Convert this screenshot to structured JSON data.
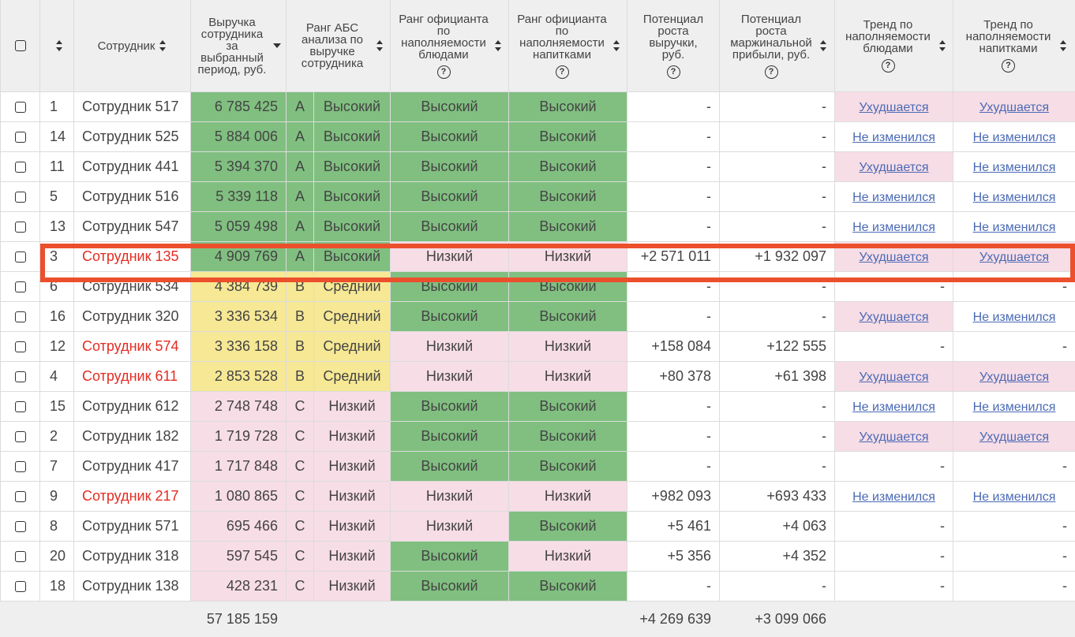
{
  "header": {
    "index": "",
    "employee": "Сотрудник",
    "revenue": "Выручка сотрудника за выбранный период, руб.",
    "abc_rank": "Ранг АБС анализа по выручке сотрудника",
    "dishes_rank": "Ранг официанта по наполняемости блюдами",
    "drinks_rank": "Ранг официанта по наполняемости напитками",
    "revenue_growth": "Потенциал роста выручки, руб.",
    "margin_growth": "Потенциал роста маржинальной прибыли, руб.",
    "trend_dishes": "Тренд по наполняемости блюдами",
    "trend_drinks": "Тренд по наполняемости напитками",
    "help_glyph": "?"
  },
  "colors": {
    "green": "#80bf80",
    "yellow": "#f6e894",
    "pink": "#f7dde6",
    "red_text": "#e32c22",
    "link": "#4a69b5",
    "highlight": "#ec4f2c"
  },
  "rows": [
    {
      "id": "1",
      "name": "Сотрудник 517",
      "revenue": "6 785 425",
      "abc": "A",
      "abc_rank": "Высокий",
      "dishes": "Высокий",
      "drinks": "Высокий",
      "rev_growth": "-",
      "margin_growth": "-",
      "trend_dishes": "Ухудшается",
      "trend_drinks": "Ухудшается"
    },
    {
      "id": "14",
      "name": "Сотрудник 525",
      "revenue": "5 884 006",
      "abc": "A",
      "abc_rank": "Высокий",
      "dishes": "Высокий",
      "drinks": "Высокий",
      "rev_growth": "-",
      "margin_growth": "-",
      "trend_dishes": "Не изменился",
      "trend_drinks": "Не изменился"
    },
    {
      "id": "11",
      "name": "Сотрудник 441",
      "revenue": "5 394 370",
      "abc": "A",
      "abc_rank": "Высокий",
      "dishes": "Высокий",
      "drinks": "Высокий",
      "rev_growth": "-",
      "margin_growth": "-",
      "trend_dishes": "Ухудшается",
      "trend_drinks": "Не изменился"
    },
    {
      "id": "5",
      "name": "Сотрудник 516",
      "revenue": "5 339 118",
      "abc": "A",
      "abc_rank": "Высокий",
      "dishes": "Высокий",
      "drinks": "Высокий",
      "rev_growth": "-",
      "margin_growth": "-",
      "trend_dishes": "Не изменился",
      "trend_drinks": "Не изменился"
    },
    {
      "id": "13",
      "name": "Сотрудник 547",
      "revenue": "5 059 498",
      "abc": "A",
      "abc_rank": "Высокий",
      "dishes": "Высокий",
      "drinks": "Высокий",
      "rev_growth": "-",
      "margin_growth": "-",
      "trend_dishes": "Не изменился",
      "trend_drinks": "Не изменился"
    },
    {
      "id": "3",
      "name": "Сотрудник 135",
      "revenue": "4 909 769",
      "abc": "A",
      "abc_rank": "Высокий",
      "dishes": "Низкий",
      "drinks": "Низкий",
      "rev_growth": "+2 571 011",
      "margin_growth": "+1 932 097",
      "trend_dishes": "Ухудшается",
      "trend_drinks": "Ухудшается"
    },
    {
      "id": "6",
      "name": "Сотрудник 534",
      "revenue": "4 384 739",
      "abc": "B",
      "abc_rank": "Средний",
      "dishes": "Высокий",
      "drinks": "Высокий",
      "rev_growth": "-",
      "margin_growth": "-",
      "trend_dishes": "-",
      "trend_drinks": "-"
    },
    {
      "id": "16",
      "name": "Сотрудник 320",
      "revenue": "3 336 534",
      "abc": "B",
      "abc_rank": "Средний",
      "dishes": "Высокий",
      "drinks": "Высокий",
      "rev_growth": "-",
      "margin_growth": "-",
      "trend_dishes": "Ухудшается",
      "trend_drinks": "Не изменился"
    },
    {
      "id": "12",
      "name": "Сотрудник 574",
      "revenue": "3 336 158",
      "abc": "B",
      "abc_rank": "Средний",
      "dishes": "Низкий",
      "drinks": "Низкий",
      "rev_growth": "+158 084",
      "margin_growth": "+122 555",
      "trend_dishes": "-",
      "trend_drinks": "-"
    },
    {
      "id": "4",
      "name": "Сотрудник 611",
      "revenue": "2 853 528",
      "abc": "B",
      "abc_rank": "Средний",
      "dishes": "Низкий",
      "drinks": "Низкий",
      "rev_growth": "+80 378",
      "margin_growth": "+61 398",
      "trend_dishes": "Ухудшается",
      "trend_drinks": "Ухудшается"
    },
    {
      "id": "15",
      "name": "Сотрудник 612",
      "revenue": "2 748 748",
      "abc": "C",
      "abc_rank": "Низкий",
      "dishes": "Высокий",
      "drinks": "Высокий",
      "rev_growth": "-",
      "margin_growth": "-",
      "trend_dishes": "Не изменился",
      "trend_drinks": "Не изменился"
    },
    {
      "id": "2",
      "name": "Сотрудник 182",
      "revenue": "1 719 728",
      "abc": "C",
      "abc_rank": "Низкий",
      "dishes": "Высокий",
      "drinks": "Высокий",
      "rev_growth": "-",
      "margin_growth": "-",
      "trend_dishes": "Ухудшается",
      "trend_drinks": "Ухудшается"
    },
    {
      "id": "7",
      "name": "Сотрудник 417",
      "revenue": "1 717 848",
      "abc": "C",
      "abc_rank": "Низкий",
      "dishes": "Высокий",
      "drinks": "Высокий",
      "rev_growth": "-",
      "margin_growth": "-",
      "trend_dishes": "-",
      "trend_drinks": "-"
    },
    {
      "id": "9",
      "name": "Сотрудник 217",
      "revenue": "1 080 865",
      "abc": "C",
      "abc_rank": "Низкий",
      "dishes": "Низкий",
      "drinks": "Низкий",
      "rev_growth": "+982 093",
      "margin_growth": "+693 433",
      "trend_dishes": "Не изменился",
      "trend_drinks": "Не изменился"
    },
    {
      "id": "8",
      "name": "Сотрудник 571",
      "revenue": "695 466",
      "abc": "C",
      "abc_rank": "Низкий",
      "dishes": "Низкий",
      "drinks": "Высокий",
      "rev_growth": "+5 461",
      "margin_growth": "+4 063",
      "trend_dishes": "-",
      "trend_drinks": "-"
    },
    {
      "id": "20",
      "name": "Сотрудник 318",
      "revenue": "597 545",
      "abc": "C",
      "abc_rank": "Низкий",
      "dishes": "Высокий",
      "drinks": "Низкий",
      "rev_growth": "+5 356",
      "margin_growth": "+4 352",
      "trend_dishes": "-",
      "trend_drinks": "-"
    },
    {
      "id": "18",
      "name": "Сотрудник 138",
      "revenue": "428 231",
      "abc": "C",
      "abc_rank": "Низкий",
      "dishes": "Высокий",
      "drinks": "Высокий",
      "rev_growth": "-",
      "margin_growth": "-",
      "trend_dishes": "-",
      "trend_drinks": "-"
    }
  ],
  "footer": {
    "revenue_total": "57 185 159",
    "rev_growth_total": "+4 269 639",
    "margin_growth_total": "+3 099 066"
  }
}
